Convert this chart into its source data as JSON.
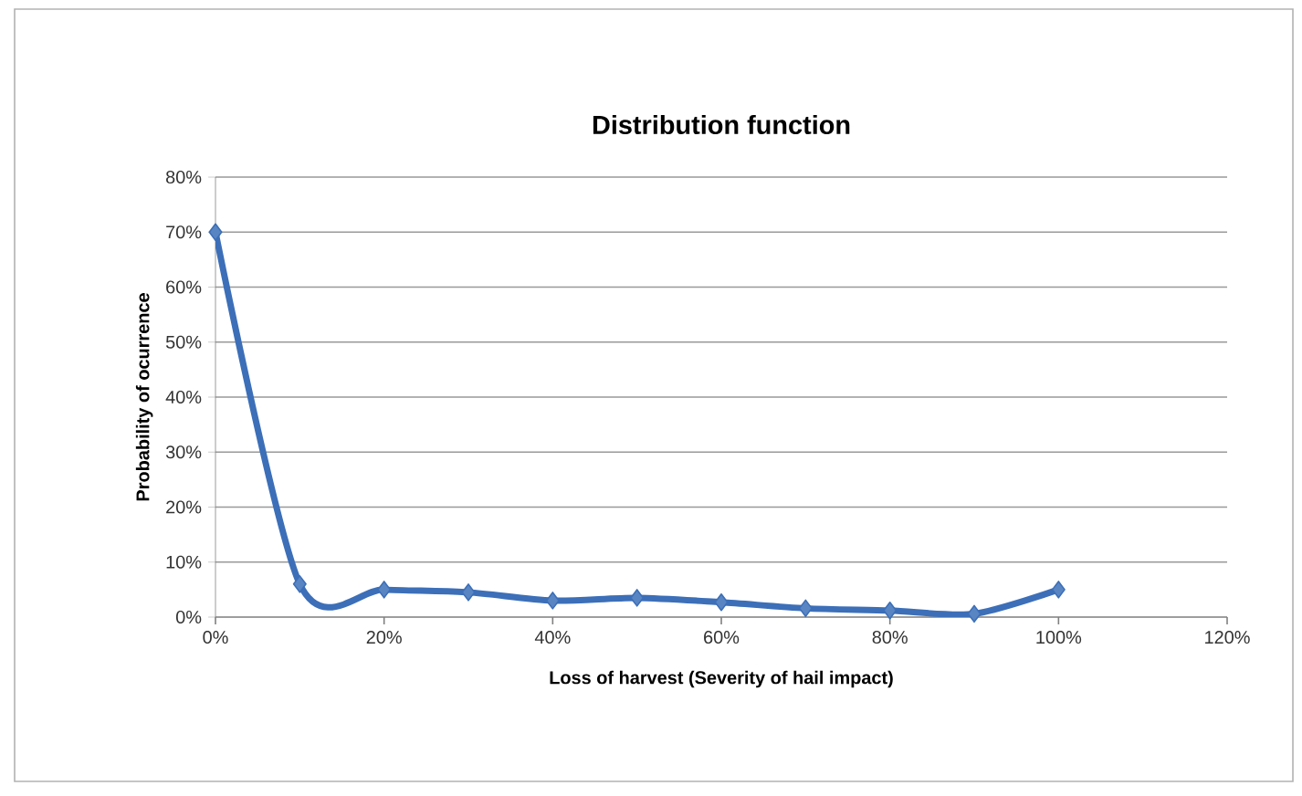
{
  "chart_data": {
    "type": "line",
    "title": "Distribution function",
    "xlabel": "Loss of harvest (Severity of hail impact)",
    "ylabel": "Probability of ocurrence",
    "x": [
      0,
      10,
      20,
      30,
      40,
      50,
      60,
      70,
      80,
      90,
      100
    ],
    "series": [
      {
        "color": "#3c6fb8",
        "values": [
          70,
          6,
          5,
          4.5,
          3,
          3.5,
          2.7,
          1.6,
          1.2,
          0.6,
          5
        ]
      }
    ],
    "xlim": [
      0,
      120
    ],
    "ylim": [
      0,
      80
    ],
    "xticks": [
      {
        "value": 0,
        "label": "0%"
      },
      {
        "value": 20,
        "label": "20%"
      },
      {
        "value": 40,
        "label": "40%"
      },
      {
        "value": 60,
        "label": "60%"
      },
      {
        "value": 80,
        "label": "80%"
      },
      {
        "value": 100,
        "label": "100%"
      },
      {
        "value": 120,
        "label": "120%"
      }
    ],
    "yticks": [
      {
        "value": 0,
        "label": "0%"
      },
      {
        "value": 10,
        "label": "10%"
      },
      {
        "value": 20,
        "label": "20%"
      },
      {
        "value": 30,
        "label": "30%"
      },
      {
        "value": 40,
        "label": "40%"
      },
      {
        "value": 50,
        "label": "50%"
      },
      {
        "value": 60,
        "label": "60%"
      },
      {
        "value": 70,
        "label": "70%"
      },
      {
        "value": 80,
        "label": "80%"
      }
    ],
    "grid": "y",
    "marker": "diamond",
    "line_style": "solid"
  }
}
